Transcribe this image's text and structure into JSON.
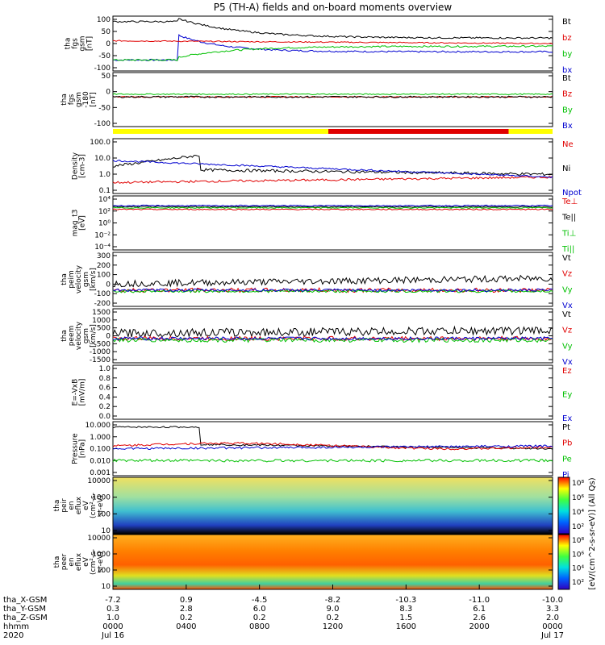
{
  "title": "P5 (TH-A) fields and on-board moments overview",
  "colors": {
    "black": "#000000",
    "red": "#e00000",
    "green": "#00c000",
    "blue": "#0000d0",
    "yellow": "#ffff00"
  },
  "panels": [
    {
      "ylabel": [
        "tha",
        "fgs",
        "gsm",
        "[nT]"
      ],
      "ticks": [
        "100",
        "50",
        "0",
        "-50",
        "-100"
      ],
      "legend": [
        [
          "Bt",
          "black"
        ],
        [
          "bz",
          "red"
        ],
        [
          "by",
          "green"
        ],
        [
          "bx",
          "blue"
        ]
      ]
    },
    {
      "ylabel": [
        "tha",
        "fgs",
        "gsm",
        "-180",
        "[nT]"
      ],
      "ticks": [
        "50",
        "0",
        "-50",
        "-100"
      ],
      "legend": [
        [
          "Bt",
          "black"
        ],
        [
          "Bz",
          "red"
        ],
        [
          "By",
          "green"
        ],
        [
          "Bx",
          "blue"
        ]
      ]
    },
    {
      "ylabel": [
        "Density",
        "[cm-3]"
      ],
      "ticks": [
        "100.0",
        "10.0",
        "1.0",
        "0.1"
      ],
      "legend": [
        [
          "Ne",
          "red"
        ],
        [
          "Ni",
          "black"
        ],
        [
          "Npot",
          "blue"
        ]
      ]
    },
    {
      "ylabel": [
        "mag_t3",
        "[eV]"
      ],
      "ticks": [
        "10⁴",
        "10²",
        "10⁰",
        "10⁻²",
        "10⁻⁴"
      ],
      "legend": [
        [
          "Te⊥",
          "red"
        ],
        [
          "Te||",
          "black"
        ],
        [
          "Ti⊥",
          "green"
        ],
        [
          "Ti||",
          "green"
        ]
      ]
    },
    {
      "ylabel": [
        "tha",
        "peim",
        "velocity",
        "gsm",
        "[km/s]"
      ],
      "ticks": [
        "300",
        "200",
        "100",
        "0",
        "-100",
        "-200"
      ],
      "legend": [
        [
          "Vt",
          "black"
        ],
        [
          "Vz",
          "red"
        ],
        [
          "Vy",
          "green"
        ],
        [
          "Vx",
          "blue"
        ]
      ]
    },
    {
      "ylabel": [
        "tha",
        "peem",
        "velocity",
        "gsm",
        "[km/s]"
      ],
      "ticks": [
        "1500",
        "1000",
        "500",
        "0",
        "-500",
        "-1000",
        "-1500"
      ],
      "legend": [
        [
          "Vt",
          "black"
        ],
        [
          "Vz",
          "red"
        ],
        [
          "Vy",
          "green"
        ],
        [
          "Vx",
          "blue"
        ]
      ]
    },
    {
      "ylabel": [
        "E=-VxB",
        "[mV/m]"
      ],
      "ticks": [
        "1.0",
        "0.8",
        "0.6",
        "0.4",
        "0.2",
        "0.0"
      ],
      "legend": [
        [
          "Ez",
          "red"
        ],
        [
          "Ey",
          "green"
        ],
        [
          "Ex",
          "blue"
        ]
      ]
    },
    {
      "ylabel": [
        "Pressure",
        "[nPa]"
      ],
      "ticks": [
        "10.000",
        "1.000",
        "0.100",
        "0.010",
        "0.001"
      ],
      "legend": [
        [
          "Pt",
          "black"
        ],
        [
          "Pb",
          "red"
        ],
        [
          "Pe",
          "green"
        ],
        [
          "Pi",
          "blue"
        ]
      ]
    },
    {
      "ylabel": [
        "tha",
        "peir",
        "en",
        "eflux",
        "eV",
        "(cm²-s-",
        "sr-eV)"
      ],
      "ticks": [
        "10000",
        "1000",
        "100",
        "10"
      ]
    },
    {
      "ylabel": [
        "tha",
        "peer",
        "en",
        "eflux",
        "eV",
        "(cm²-s-",
        "sr-eV)"
      ],
      "ticks": [
        "10000",
        "1000",
        "100",
        "10"
      ]
    }
  ],
  "colorbar": {
    "label": "[eV/(cm^2-s-sr-eV)] (All Qs)",
    "ticks_top": [
      "10⁸",
      "10⁶",
      "10⁴",
      "10²"
    ],
    "ticks_bottom": [
      "10⁸",
      "10⁶",
      "10⁴",
      "10²"
    ]
  },
  "xaxis": {
    "row_labels": [
      "tha_X-GSM",
      "tha_Y-GSM",
      "tha_Z-GSM",
      "hhmm",
      "2020"
    ],
    "ticks": [
      {
        "x": "-7.2",
        "y": "0.3",
        "z": "1.0",
        "t": "0000",
        "d": "Jul 16"
      },
      {
        "x": "0.9",
        "y": "2.8",
        "z": "0.2",
        "t": "0400",
        "d": ""
      },
      {
        "x": "-4.5",
        "y": "6.0",
        "z": "0.2",
        "t": "0800",
        "d": ""
      },
      {
        "x": "-8.2",
        "y": "9.0",
        "z": "0.2",
        "t": "1200",
        "d": ""
      },
      {
        "x": "-10.3",
        "y": "8.3",
        "z": "1.5",
        "t": "1600",
        "d": ""
      },
      {
        "x": "-11.0",
        "y": "6.1",
        "z": "2.6",
        "t": "2000",
        "d": ""
      },
      {
        "x": "-10.0",
        "y": "3.3",
        "z": "2.0",
        "t": "0000",
        "d": "Jul 17"
      }
    ]
  }
}
